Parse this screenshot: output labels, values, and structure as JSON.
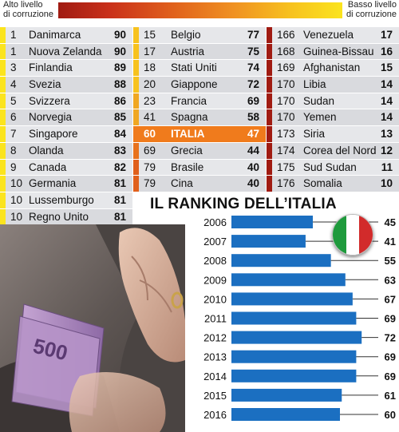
{
  "legend": {
    "left_line1": "Alto livello",
    "left_line2": "di corruzione",
    "right_line1": "Basso livello",
    "right_line2": "di corruzione"
  },
  "table": {
    "columns": [
      [
        {
          "rank": "1",
          "country": "Danimarca",
          "score": "90",
          "color": "#fbe41e"
        },
        {
          "rank": "1",
          "country": "Nuova Zelanda",
          "score": "90",
          "color": "#fbe41e"
        },
        {
          "rank": "3",
          "country": "Finlandia",
          "score": "89",
          "color": "#fbe41e"
        },
        {
          "rank": "4",
          "country": "Svezia",
          "score": "88",
          "color": "#fbe41e"
        },
        {
          "rank": "5",
          "country": "Svizzera",
          "score": "86",
          "color": "#fbe41e"
        },
        {
          "rank": "6",
          "country": "Norvegia",
          "score": "85",
          "color": "#fbe41e"
        },
        {
          "rank": "7",
          "country": "Singapore",
          "score": "84",
          "color": "#fbe41e"
        },
        {
          "rank": "8",
          "country": "Olanda",
          "score": "83",
          "color": "#fbe41e"
        },
        {
          "rank": "9",
          "country": "Canada",
          "score": "82",
          "color": "#fbe41e"
        },
        {
          "rank": "10",
          "country": "Germania",
          "score": "81",
          "color": "#fbe41e"
        },
        {
          "rank": "10",
          "country": "Lussemburgo",
          "score": "81",
          "color": "#fbe41e"
        },
        {
          "rank": "10",
          "country": "Regno Unito",
          "score": "81",
          "color": "#fbe41e"
        }
      ],
      [
        {
          "rank": "15",
          "country": "Belgio",
          "score": "77",
          "color": "#f7c21e"
        },
        {
          "rank": "17",
          "country": "Austria",
          "score": "75",
          "color": "#f7c21e"
        },
        {
          "rank": "18",
          "country": "Stati Uniti",
          "score": "74",
          "color": "#f7c21e"
        },
        {
          "rank": "20",
          "country": "Giappone",
          "score": "72",
          "color": "#f7c21e"
        },
        {
          "rank": "23",
          "country": "Francia",
          "score": "69",
          "color": "#f0a722"
        },
        {
          "rank": "41",
          "country": "Spagna",
          "score": "58",
          "color": "#f0a722"
        },
        {
          "rank": "60",
          "country": "ITALIA",
          "score": "47",
          "color": "#f07b1c",
          "highlight": true
        },
        {
          "rank": "69",
          "country": "Grecia",
          "score": "44",
          "color": "#e8721c"
        },
        {
          "rank": "79",
          "country": "Brasile",
          "score": "40",
          "color": "#e0601c"
        },
        {
          "rank": "79",
          "country": "Cina",
          "score": "40",
          "color": "#e0601c"
        }
      ],
      [
        {
          "rank": "166",
          "country": "Venezuela",
          "score": "17",
          "color": "#a01b12"
        },
        {
          "rank": "168",
          "country": "Guinea-Bissau",
          "score": "16",
          "color": "#a01b12"
        },
        {
          "rank": "169",
          "country": "Afghanistan",
          "score": "15",
          "color": "#a01b12"
        },
        {
          "rank": "170",
          "country": "Libia",
          "score": "14",
          "color": "#a01b12"
        },
        {
          "rank": "170",
          "country": "Sudan",
          "score": "14",
          "color": "#a01b12"
        },
        {
          "rank": "170",
          "country": "Yemen",
          "score": "14",
          "color": "#a01b12"
        },
        {
          "rank": "173",
          "country": "Siria",
          "score": "13",
          "color": "#a01b12"
        },
        {
          "rank": "174",
          "country": "Corea del Nord",
          "score": "12",
          "color": "#a01b12"
        },
        {
          "rank": "175",
          "country": "Sud Sudan",
          "score": "11",
          "color": "#a01b12"
        },
        {
          "rank": "176",
          "country": "Somalia",
          "score": "10",
          "color": "#a01b12"
        }
      ]
    ]
  },
  "chart_data": {
    "type": "bar",
    "orientation": "horizontal",
    "title": "IL RANKING DELL’ITALIA",
    "categories": [
      "2006",
      "2007",
      "2008",
      "2009",
      "2010",
      "2011",
      "2012",
      "2013",
      "2014",
      "2015",
      "2016"
    ],
    "values": [
      45,
      41,
      55,
      63,
      67,
      69,
      72,
      69,
      69,
      61,
      60
    ],
    "bar_color": "#1b6fc1",
    "xlabel": "",
    "ylabel": ""
  },
  "flag_colors": [
    "#1e9a3c",
    "#ffffff",
    "#d22b2b"
  ]
}
